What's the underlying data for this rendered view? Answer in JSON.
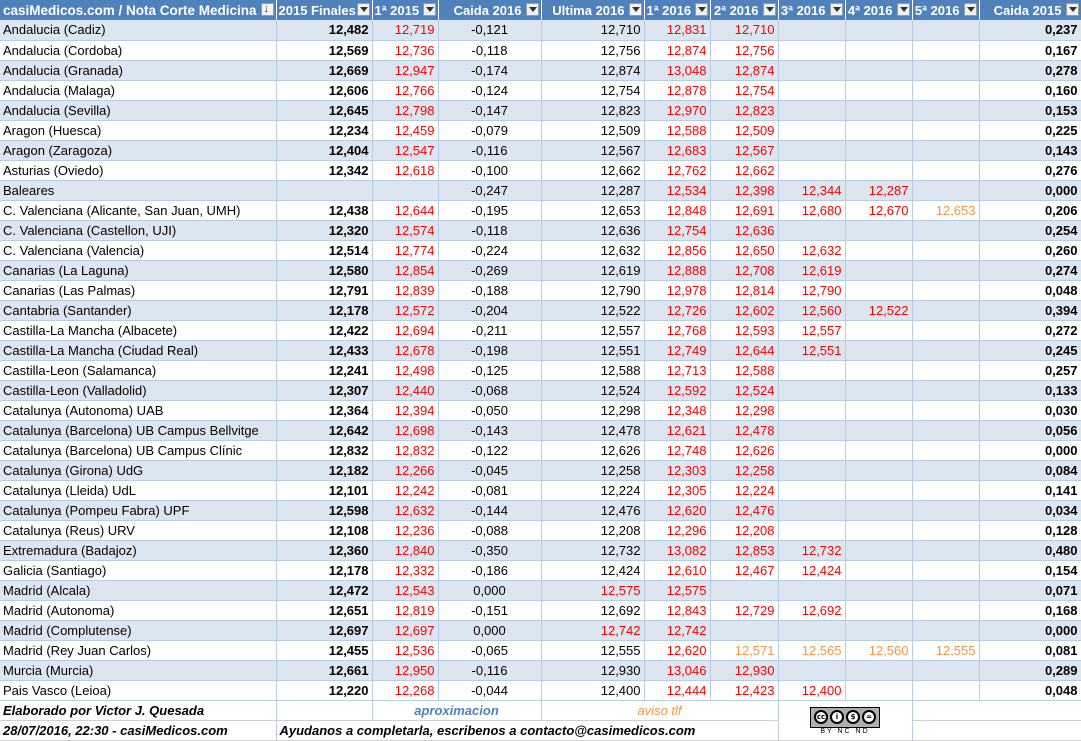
{
  "headers": [
    "casiMedicos.com / Nota Corte Medicina",
    "2015 Finales",
    "1ª 2015",
    "Caida 2016",
    "Ultima 2016",
    "1ª 2016",
    "2ª 2016",
    "3ª 2016",
    "4ª 2016",
    "5ª 2016",
    "Caida 2015"
  ],
  "rows": [
    {
      "name": "Andalucia (Cadiz)",
      "fin2015": "12,482",
      "first2015": "12,719",
      "caida2016": "-0,121",
      "ultima2016": "12,710",
      "ultimaRed": false,
      "r1": "12,831",
      "r2": "12,710",
      "r3": "",
      "r4": "",
      "r5": "",
      "caida2015": "0,237"
    },
    {
      "name": "Andalucia (Cordoba)",
      "fin2015": "12,569",
      "first2015": "12,736",
      "caida2016": "-0,118",
      "ultima2016": "12,756",
      "ultimaRed": false,
      "r1": "12,874",
      "r2": "12,756",
      "r3": "",
      "r4": "",
      "r5": "",
      "caida2015": "0,167"
    },
    {
      "name": "Andalucia (Granada)",
      "fin2015": "12,669",
      "first2015": "12,947",
      "caida2016": "-0,174",
      "ultima2016": "12,874",
      "ultimaRed": false,
      "r1": "13,048",
      "r2": "12,874",
      "r3": "",
      "r4": "",
      "r5": "",
      "caida2015": "0,278"
    },
    {
      "name": "Andalucia (Malaga)",
      "fin2015": "12,606",
      "first2015": "12,766",
      "caida2016": "-0,124",
      "ultima2016": "12,754",
      "ultimaRed": false,
      "r1": "12,878",
      "r2": "12,754",
      "r3": "",
      "r4": "",
      "r5": "",
      "caida2015": "0,160"
    },
    {
      "name": "Andalucia (Sevilla)",
      "fin2015": "12,645",
      "first2015": "12,798",
      "caida2016": "-0,147",
      "ultima2016": "12,823",
      "ultimaRed": false,
      "r1": "12,970",
      "r2": "12,823",
      "r3": "",
      "r4": "",
      "r5": "",
      "caida2015": "0,153"
    },
    {
      "name": "Aragon (Huesca)",
      "fin2015": "12,234",
      "first2015": "12,459",
      "caida2016": "-0,079",
      "ultima2016": "12,509",
      "ultimaRed": false,
      "r1": "12,588",
      "r2": "12,509",
      "r3": "",
      "r4": "",
      "r5": "",
      "caida2015": "0,225"
    },
    {
      "name": "Aragon (Zaragoza)",
      "fin2015": "12,404",
      "first2015": "12,547",
      "caida2016": "-0,116",
      "ultima2016": "12,567",
      "ultimaRed": false,
      "r1": "12,683",
      "r2": "12,567",
      "r3": "",
      "r4": "",
      "r5": "",
      "caida2015": "0,143"
    },
    {
      "name": "Asturias (Oviedo)",
      "fin2015": "12,342",
      "first2015": "12,618",
      "caida2016": "-0,100",
      "ultima2016": "12,662",
      "ultimaRed": false,
      "r1": "12,762",
      "r2": "12,662",
      "r3": "",
      "r4": "",
      "r5": "",
      "caida2015": "0,276"
    },
    {
      "name": "Baleares",
      "fin2015": "",
      "first2015": "",
      "caida2016": "-0,247",
      "ultima2016": "12,287",
      "ultimaRed": false,
      "r1": "12,534",
      "r2": "12,398",
      "r3": "12,344",
      "r4": "12,287",
      "r5": "",
      "caida2015": "0,000"
    },
    {
      "name": "C. Valenciana (Alicante, San Juan, UMH)",
      "fin2015": "12,438",
      "first2015": "12,644",
      "caida2016": "-0,195",
      "ultima2016": "12,653",
      "ultimaRed": false,
      "r1": "12,848",
      "r2": "12,691",
      "r3": "12,680",
      "r4": "12,670",
      "r5": "12,653",
      "r5Orange": true,
      "caida2015": "0,206"
    },
    {
      "name": "C. Valenciana (Castellon, UJI)",
      "fin2015": "12,320",
      "first2015": "12,574",
      "caida2016": "-0,118",
      "ultima2016": "12,636",
      "ultimaRed": false,
      "r1": "12,754",
      "r2": "12,636",
      "r3": "",
      "r4": "",
      "r5": "",
      "caida2015": "0,254"
    },
    {
      "name": "C. Valenciana (Valencia)",
      "fin2015": "12,514",
      "first2015": "12,774",
      "caida2016": "-0,224",
      "ultima2016": "12,632",
      "ultimaRed": false,
      "r1": "12,856",
      "r2": "12,650",
      "r3": "12,632",
      "r4": "",
      "r5": "",
      "caida2015": "0,260"
    },
    {
      "name": "Canarias (La Laguna)",
      "fin2015": "12,580",
      "first2015": "12,854",
      "caida2016": "-0,269",
      "ultima2016": "12,619",
      "ultimaRed": false,
      "r1": "12,888",
      "r2": "12,708",
      "r3": "12,619",
      "r4": "",
      "r5": "",
      "caida2015": "0,274"
    },
    {
      "name": "Canarias (Las Palmas)",
      "fin2015": "12,791",
      "first2015": "12,839",
      "caida2016": "-0,188",
      "ultima2016": "12,790",
      "ultimaRed": false,
      "r1": "12,978",
      "r2": "12,814",
      "r3": "12,790",
      "r4": "",
      "r5": "",
      "caida2015": "0,048"
    },
    {
      "name": "Cantabria (Santander)",
      "fin2015": "12,178",
      "first2015": "12,572",
      "caida2016": "-0,204",
      "ultima2016": "12,522",
      "ultimaRed": false,
      "r1": "12,726",
      "r2": "12,602",
      "r3": "12,560",
      "r4": "12,522",
      "r5": "",
      "caida2015": "0,394"
    },
    {
      "name": "Castilla-La Mancha (Albacete)",
      "fin2015": "12,422",
      "first2015": "12,694",
      "caida2016": "-0,211",
      "ultima2016": "12,557",
      "ultimaRed": false,
      "r1": "12,768",
      "r2": "12,593",
      "r3": "12,557",
      "r4": "",
      "r5": "",
      "caida2015": "0,272"
    },
    {
      "name": "Castilla-La Mancha (Ciudad Real)",
      "fin2015": "12,433",
      "first2015": "12,678",
      "caida2016": "-0,198",
      "ultima2016": "12,551",
      "ultimaRed": false,
      "r1": "12,749",
      "r2": "12,644",
      "r3": "12,551",
      "r4": "",
      "r5": "",
      "caida2015": "0,245"
    },
    {
      "name": "Castilla-Leon (Salamanca)",
      "fin2015": "12,241",
      "first2015": "12,498",
      "caida2016": "-0,125",
      "ultima2016": "12,588",
      "ultimaRed": false,
      "r1": "12,713",
      "r2": "12,588",
      "r3": "",
      "r4": "",
      "r5": "",
      "caida2015": "0,257"
    },
    {
      "name": "Castilla-Leon (Valladolid)",
      "fin2015": "12,307",
      "first2015": "12,440",
      "caida2016": "-0,068",
      "ultima2016": "12,524",
      "ultimaRed": false,
      "r1": "12,592",
      "r2": "12,524",
      "r3": "",
      "r4": "",
      "r5": "",
      "caida2015": "0,133"
    },
    {
      "name": "Catalunya (Autonoma) UAB",
      "fin2015": "12,364",
      "first2015": "12,394",
      "caida2016": "-0,050",
      "ultima2016": "12,298",
      "ultimaRed": false,
      "r1": "12,348",
      "r2": "12,298",
      "r3": "",
      "r4": "",
      "r5": "",
      "caida2015": "0,030"
    },
    {
      "name": "Catalunya (Barcelona) UB Campus Bellvitge",
      "fin2015": "12,642",
      "first2015": "12,698",
      "caida2016": "-0,143",
      "ultima2016": "12,478",
      "ultimaRed": false,
      "r1": "12,621",
      "r2": "12,478",
      "r3": "",
      "r4": "",
      "r5": "",
      "caida2015": "0,056"
    },
    {
      "name": "Catalunya (Barcelona) UB Campus Clínic",
      "fin2015": "12,832",
      "first2015": "12,832",
      "caida2016": "-0,122",
      "ultima2016": "12,626",
      "ultimaRed": false,
      "r1": "12,748",
      "r2": "12,626",
      "r3": "",
      "r4": "",
      "r5": "",
      "caida2015": "0,000"
    },
    {
      "name": "Catalunya (Girona) UdG",
      "fin2015": "12,182",
      "first2015": "12,266",
      "caida2016": "-0,045",
      "ultima2016": "12,258",
      "ultimaRed": false,
      "r1": "12,303",
      "r2": "12,258",
      "r3": "",
      "r4": "",
      "r5": "",
      "caida2015": "0,084"
    },
    {
      "name": "Catalunya (Lleida) UdL",
      "fin2015": "12,101",
      "first2015": "12,242",
      "caida2016": "-0,081",
      "ultima2016": "12,224",
      "ultimaRed": false,
      "r1": "12,305",
      "r2": "12,224",
      "r3": "",
      "r4": "",
      "r5": "",
      "caida2015": "0,141"
    },
    {
      "name": "Catalunya (Pompeu Fabra) UPF",
      "fin2015": "12,598",
      "first2015": "12,632",
      "caida2016": "-0,144",
      "ultima2016": "12,476",
      "ultimaRed": false,
      "r1": "12,620",
      "r2": "12,476",
      "r3": "",
      "r4": "",
      "r5": "",
      "caida2015": "0,034"
    },
    {
      "name": "Catalunya (Reus) URV",
      "fin2015": "12,108",
      "first2015": "12,236",
      "caida2016": "-0,088",
      "ultima2016": "12,208",
      "ultimaRed": false,
      "r1": "12,296",
      "r2": "12,208",
      "r3": "",
      "r4": "",
      "r5": "",
      "caida2015": "0,128"
    },
    {
      "name": "Extremadura (Badajoz)",
      "fin2015": "12,360",
      "first2015": "12,840",
      "caida2016": "-0,350",
      "ultima2016": "12,732",
      "ultimaRed": false,
      "r1": "13,082",
      "r2": "12,853",
      "r3": "12,732",
      "r4": "",
      "r5": "",
      "caida2015": "0,480"
    },
    {
      "name": "Galicia (Santiago)",
      "fin2015": "12,178",
      "first2015": "12,332",
      "caida2016": "-0,186",
      "ultima2016": "12,424",
      "ultimaRed": false,
      "r1": "12,610",
      "r2": "12,467",
      "r3": "12,424",
      "r4": "",
      "r5": "",
      "caida2015": "0,154"
    },
    {
      "name": "Madrid (Alcala)",
      "fin2015": "12,472",
      "first2015": "12,543",
      "caida2016": "0,000",
      "ultima2016": "12,575",
      "ultimaRed": true,
      "r1": "12,575",
      "r2": "",
      "r3": "",
      "r4": "",
      "r5": "",
      "caida2015": "0,071"
    },
    {
      "name": "Madrid (Autonoma)",
      "fin2015": "12,651",
      "first2015": "12,819",
      "caida2016": "-0,151",
      "ultima2016": "12,692",
      "ultimaRed": false,
      "r1": "12,843",
      "r2": "12,729",
      "r3": "12,692",
      "r4": "",
      "r5": "",
      "caida2015": "0,168"
    },
    {
      "name": "Madrid (Complutense)",
      "fin2015": "12,697",
      "first2015": "12,697",
      "caida2016": "0,000",
      "ultima2016": "12,742",
      "ultimaRed": true,
      "r1": "12,742",
      "r2": "",
      "r3": "",
      "r4": "",
      "r5": "",
      "caida2015": "0,000"
    },
    {
      "name": "Madrid (Rey Juan Carlos)",
      "fin2015": "12,455",
      "first2015": "12,536",
      "caida2016": "-0,065",
      "ultima2016": "12,555",
      "ultimaRed": false,
      "r1": "12,620",
      "r2": "12,571",
      "r3": "12,565",
      "r4": "12,560",
      "r5": "12,555",
      "allOrange": true,
      "caida2015": "0,081"
    },
    {
      "name": "Murcia (Murcia)",
      "fin2015": "12,661",
      "first2015": "12,950",
      "caida2016": "-0,116",
      "ultima2016": "12,930",
      "ultimaRed": false,
      "r1": "13,046",
      "r2": "12,930",
      "r3": "",
      "r4": "",
      "r5": "",
      "caida2015": "0,289"
    },
    {
      "name": "Pais Vasco (Leioa)",
      "fin2015": "12,220",
      "first2015": "12,268",
      "caida2016": "-0,044",
      "ultima2016": "12,400",
      "ultimaRed": false,
      "r1": "12,444",
      "r2": "12,423",
      "r3": "12,400",
      "r4": "",
      "r5": "",
      "caida2015": "0,048"
    }
  ],
  "footer": {
    "author": "Elaborado por Victor J. Quesada",
    "legend_approx": "aproximacion",
    "legend_phone": "aviso tlf",
    "date": "28/07/2016, 22:30 - casiMedicos.com",
    "help": "Ayudanos a completarla, escribenos a contacto@casimedicos.com",
    "license_label": "BY NC ND",
    "license_icon": "cc-by-nc-nd-icon"
  },
  "colors": {
    "header_bg": "#4f81bd",
    "band": "#dce6f1",
    "red": "#ff0000",
    "orange": "#f79646",
    "blue": "#4f81bd"
  }
}
